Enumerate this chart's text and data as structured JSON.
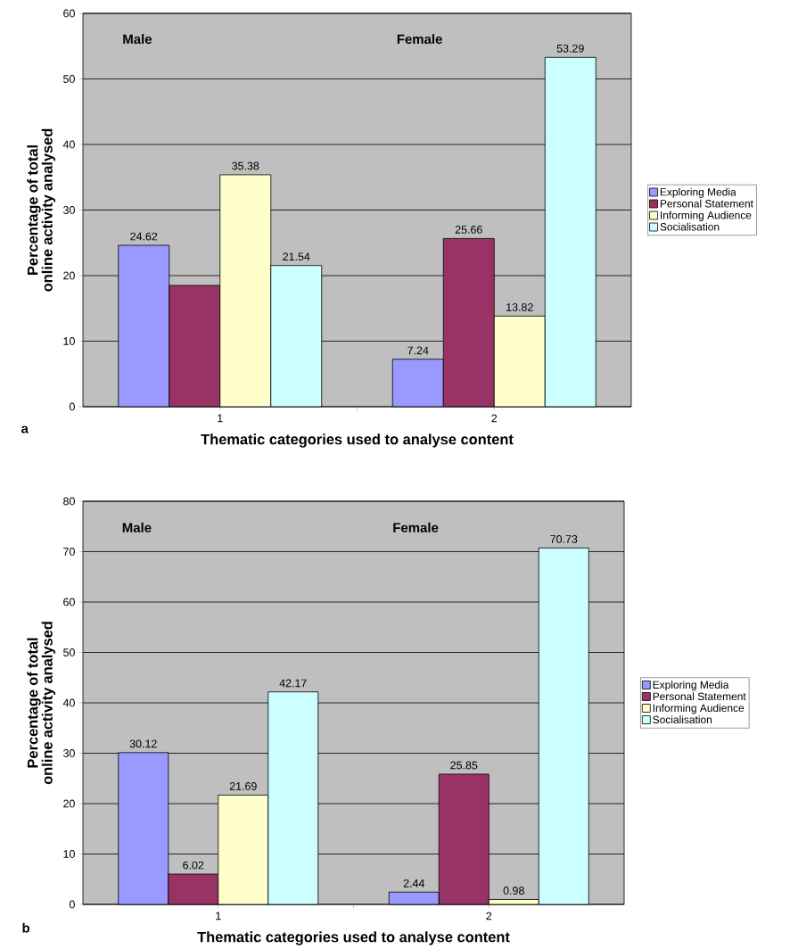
{
  "chart_data": [
    {
      "type": "bar",
      "xlabel": "Thematic categories used to analyse content",
      "ylabel": "Percentage of total online activity analysed",
      "categories": [
        "1",
        "2"
      ],
      "series": [
        {
          "name": "Exploring Media",
          "color": "#9999ff",
          "values": [
            24.62,
            7.24
          ],
          "value_labels": [
            "24.62",
            "7.24"
          ]
        },
        {
          "name": "Personal Statement",
          "color": "#993366",
          "values": [
            18.5,
            25.66
          ],
          "value_labels": [
            null,
            "25.66"
          ]
        },
        {
          "name": "Informing Audience",
          "color": "#ffffcc",
          "values": [
            35.38,
            13.82
          ],
          "value_labels": [
            "35.38",
            "13.82"
          ]
        },
        {
          "name": "Socialisation",
          "color": "#ccffff",
          "values": [
            21.54,
            53.29
          ],
          "value_labels": [
            "21.54",
            "53.29"
          ]
        }
      ],
      "ylim": [
        0,
        60
      ],
      "yticks": [
        0,
        10,
        20,
        30,
        40,
        50,
        60
      ],
      "grid": "y",
      "legend": "right",
      "annotations": [
        "Male",
        "Female",
        "a"
      ]
    },
    {
      "type": "bar",
      "xlabel": "Thematic categories used to analyse content",
      "ylabel": "Percentage of total online activity analysed",
      "categories": [
        "1",
        "2"
      ],
      "series": [
        {
          "name": "Exploring Media",
          "color": "#9999ff",
          "values": [
            30.12,
            2.44
          ],
          "value_labels": [
            "30.12",
            "2.44"
          ]
        },
        {
          "name": "Personal Statement",
          "color": "#993366",
          "values": [
            6.02,
            25.85
          ],
          "value_labels": [
            "6.02",
            "25.85"
          ]
        },
        {
          "name": "Informing Audience",
          "color": "#ffffcc",
          "values": [
            21.69,
            0.98
          ],
          "value_labels": [
            "21.69",
            "0.98"
          ]
        },
        {
          "name": "Socialisation",
          "color": "#ccffff",
          "values": [
            42.17,
            70.73
          ],
          "value_labels": [
            "42.17",
            "70.73"
          ]
        }
      ],
      "ylim": [
        0,
        80
      ],
      "yticks": [
        0,
        10,
        20,
        30,
        40,
        50,
        60,
        70,
        80
      ],
      "grid": "y",
      "legend": "right",
      "annotations": [
        "Male",
        "Female",
        "b"
      ]
    }
  ]
}
